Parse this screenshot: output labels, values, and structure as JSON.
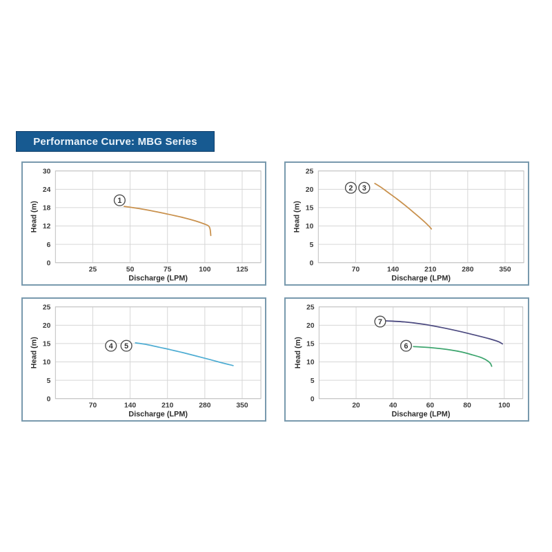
{
  "title": {
    "text": "Performance Curve: MBG Series",
    "bg": "#175a91",
    "fg": "#eaf3fa",
    "border": "#0f3e6a"
  },
  "panel": {
    "border_color": "#7899ad",
    "grid_color": "#d6d6d6"
  },
  "chart_data": [
    {
      "type": "line",
      "name": "chart-1",
      "xlabel": "Discharge (LPM)",
      "ylabel": "Head (m)",
      "x_ticks": [
        25,
        50,
        75,
        100,
        125
      ],
      "y_ticks": [
        0,
        6,
        12,
        18,
        24,
        30
      ],
      "xlim": [
        0,
        137.5
      ],
      "ylim": [
        0,
        30
      ],
      "grid": true,
      "legend": "none",
      "series": [
        {
          "name": "curve-1",
          "color": "#c9914d",
          "points": [
            [
              46,
              18.4
            ],
            [
              56,
              17.7
            ],
            [
              66,
              16.8
            ],
            [
              76,
              15.8
            ],
            [
              86,
              14.7
            ],
            [
              94,
              13.6
            ],
            [
              100,
              12.6
            ],
            [
              102.5,
              12.0
            ],
            [
              103.5,
              11.0
            ],
            [
              104,
              8.9
            ]
          ]
        }
      ],
      "labels": [
        {
          "text": "1",
          "x": 43,
          "y": 20.4
        }
      ]
    },
    {
      "type": "line",
      "name": "chart-2",
      "xlabel": "Discharge (LPM)",
      "ylabel": "Head (m)",
      "x_ticks": [
        70,
        140,
        210,
        280,
        350
      ],
      "y_ticks": [
        0,
        5,
        10,
        15,
        20,
        25
      ],
      "xlim": [
        0,
        385
      ],
      "ylim": [
        0,
        25
      ],
      "grid": true,
      "legend": "none",
      "series": [
        {
          "name": "curve-2-3",
          "color": "#c9914d",
          "points": [
            [
              106,
              21.6
            ],
            [
              118,
              20.5
            ],
            [
              132,
              19.0
            ],
            [
              147,
              17.4
            ],
            [
              162,
              15.7
            ],
            [
              177,
              13.9
            ],
            [
              190,
              12.3
            ],
            [
              200,
              11.0
            ],
            [
              207,
              10.0
            ],
            [
              212,
              9.2
            ]
          ]
        }
      ],
      "labels": [
        {
          "text": "2",
          "x": 61,
          "y": 20.4
        },
        {
          "text": "3",
          "x": 86,
          "y": 20.4
        }
      ]
    },
    {
      "type": "line",
      "name": "chart-3",
      "xlabel": "Discharge (LPM)",
      "ylabel": "Head (m)",
      "x_ticks": [
        70,
        140,
        210,
        280,
        350
      ],
      "y_ticks": [
        0,
        5,
        10,
        15,
        20,
        25
      ],
      "xlim": [
        0,
        385
      ],
      "ylim": [
        0,
        25
      ],
      "grid": true,
      "legend": "none",
      "series": [
        {
          "name": "curve-4-5",
          "color": "#4fadd3",
          "points": [
            [
              150,
              15.2
            ],
            [
              172,
              14.7
            ],
            [
              194,
              14.0
            ],
            [
              216,
              13.3
            ],
            [
              240,
              12.5
            ],
            [
              264,
              11.6
            ],
            [
              288,
              10.7
            ],
            [
              308,
              9.9
            ],
            [
              322,
              9.4
            ],
            [
              333,
              9.0
            ]
          ]
        }
      ],
      "labels": [
        {
          "text": "4",
          "x": 104,
          "y": 14.4
        },
        {
          "text": "5",
          "x": 133,
          "y": 14.4
        }
      ]
    },
    {
      "type": "line",
      "name": "chart-4",
      "xlabel": "Discharge (LPM)",
      "ylabel": "Head (m)",
      "x_ticks": [
        20,
        40,
        60,
        80,
        100
      ],
      "y_ticks": [
        0,
        5,
        10,
        15,
        20,
        25
      ],
      "xlim": [
        0,
        110
      ],
      "ylim": [
        0,
        25
      ],
      "grid": true,
      "legend": "none",
      "series": [
        {
          "name": "curve-7",
          "color": "#4c4a80",
          "points": [
            [
              36,
              21.2
            ],
            [
              46,
              20.9
            ],
            [
              56,
              20.3
            ],
            [
              66,
              19.4
            ],
            [
              76,
              18.3
            ],
            [
              85,
              17.2
            ],
            [
              92,
              16.3
            ],
            [
              97,
              15.5
            ],
            [
              99,
              14.9
            ]
          ]
        },
        {
          "name": "curve-6",
          "color": "#3da56e",
          "points": [
            [
              51,
              14.2
            ],
            [
              60,
              13.9
            ],
            [
              69,
              13.4
            ],
            [
              77,
              12.7
            ],
            [
              83,
              11.9
            ],
            [
              88,
              11.1
            ],
            [
              91,
              10.3
            ],
            [
              92.5,
              9.6
            ],
            [
              93.2,
              8.8
            ]
          ]
        }
      ],
      "labels": [
        {
          "text": "7",
          "x": 33,
          "y": 21.0
        },
        {
          "text": "6",
          "x": 47,
          "y": 14.4
        }
      ]
    }
  ]
}
